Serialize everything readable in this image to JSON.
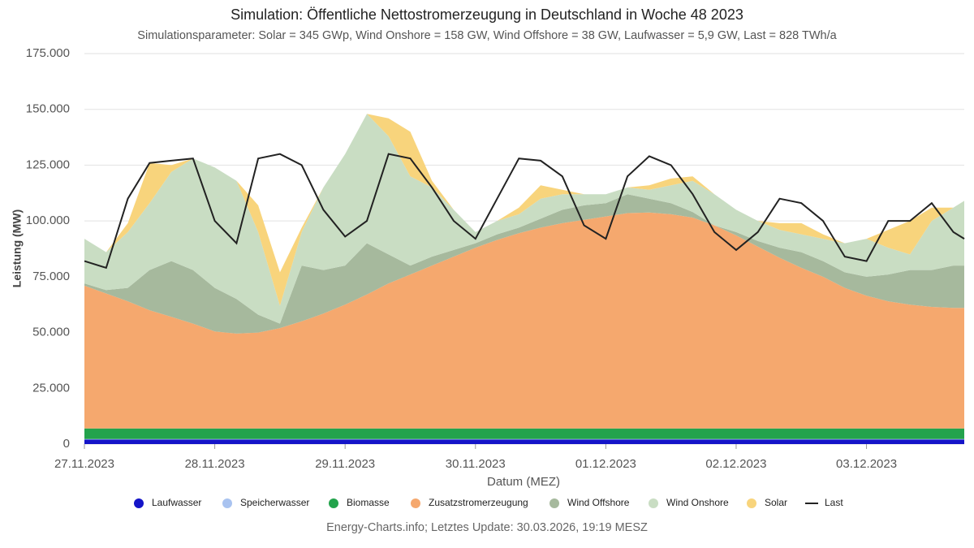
{
  "chart_data": {
    "type": "area",
    "title": "Simulation: Öffentliche Nettostromerzeugung in Deutschland in Woche 48 2023",
    "subtitle": "Simulationsparameter: Solar = 345 GWp, Wind Onshore = 158 GW, Wind Offshore = 38 GW, Laufwasser = 5,9 GW, Last = 828 TWh/a",
    "xlabel": "Datum (MEZ)",
    "ylabel": "Leistung (MW)",
    "credit": "Energy-Charts.info; Letztes Update: 30.03.2026, 19:19 MESZ",
    "stacked": true,
    "grid": true,
    "legend": "bottom",
    "x": [
      0,
      4,
      8,
      12,
      16,
      20,
      24,
      28,
      32,
      36,
      40,
      44,
      48,
      52,
      56,
      60,
      64,
      68,
      72,
      76,
      80,
      84,
      88,
      92,
      96,
      100,
      104,
      108,
      112,
      116,
      120,
      124,
      128,
      132,
      136,
      140,
      144,
      148,
      152,
      156,
      160,
      162
    ],
    "xlim": [
      0,
      162
    ],
    "xticks": [
      {
        "value": 0,
        "label": "27.11.2023"
      },
      {
        "value": 24,
        "label": "28.11.2023"
      },
      {
        "value": 48,
        "label": "29.11.2023"
      },
      {
        "value": 72,
        "label": "30.11.2023"
      },
      {
        "value": 96,
        "label": "01.12.2023"
      },
      {
        "value": 120,
        "label": "02.12.2023"
      },
      {
        "value": 144,
        "label": "03.12.2023"
      }
    ],
    "ylim": [
      0,
      175000
    ],
    "yticks": [
      0,
      {
        "value": 25000,
        "label": "25.000"
      },
      {
        "value": 50000,
        "label": "50.000"
      },
      {
        "value": 75000,
        "label": "75.000"
      },
      {
        "value": 100000,
        "label": "100.000"
      },
      {
        "value": 125000,
        "label": "125.000"
      },
      {
        "value": 150000,
        "label": "150.000"
      },
      {
        "value": 175000,
        "label": "175.000"
      }
    ],
    "series": [
      {
        "name": "Laufwasser",
        "type": "area",
        "color": "#1414c8",
        "values": [
          2000,
          2000,
          2000,
          2000,
          2000,
          2000,
          2000,
          2000,
          2000,
          2000,
          2000,
          2000,
          2000,
          2000,
          2000,
          2000,
          2000,
          2000,
          2000,
          2000,
          2000,
          2000,
          2000,
          2000,
          2000,
          2000,
          2000,
          2000,
          2000,
          2000,
          2000,
          2000,
          2000,
          2000,
          2000,
          2000,
          2000,
          2000,
          2000,
          2000,
          2000,
          2000
        ]
      },
      {
        "name": "Speicherwasser",
        "type": "area",
        "color": "#a9c3f0",
        "values": [
          300,
          300,
          300,
          300,
          300,
          300,
          300,
          300,
          300,
          300,
          300,
          300,
          300,
          300,
          300,
          300,
          300,
          300,
          300,
          300,
          300,
          300,
          300,
          300,
          300,
          300,
          300,
          300,
          300,
          300,
          300,
          300,
          300,
          300,
          300,
          300,
          300,
          300,
          300,
          300,
          300,
          300
        ]
      },
      {
        "name": "Biomasse",
        "type": "area",
        "color": "#23a34c",
        "values": [
          4700,
          4700,
          4700,
          4700,
          4700,
          4700,
          4700,
          4700,
          4700,
          4700,
          4700,
          4700,
          4700,
          4700,
          4700,
          4700,
          4700,
          4700,
          4700,
          4700,
          4700,
          4700,
          4700,
          4700,
          4700,
          4700,
          4700,
          4700,
          4700,
          4700,
          4700,
          4700,
          4700,
          4700,
          4700,
          4700,
          4700,
          4700,
          4700,
          4700,
          4700,
          4700
        ]
      },
      {
        "name": "Zusatzstromerzeugung",
        "type": "area",
        "color": "#f5a86e",
        "values": [
          64000,
          60500,
          57000,
          53000,
          50000,
          47000,
          43500,
          42500,
          43000,
          45000,
          48000,
          51500,
          55500,
          60000,
          65000,
          69000,
          73000,
          77000,
          81000,
          84500,
          87500,
          90000,
          92000,
          93500,
          95000,
          96500,
          96800,
          96000,
          94500,
          91000,
          86500,
          81500,
          76500,
          72000,
          68000,
          63000,
          59500,
          57000,
          55500,
          54500,
          54000,
          54000
        ]
      },
      {
        "name": "Wind Offshore",
        "type": "area",
        "color": "#a6b99d",
        "values": [
          1000,
          1500,
          6000,
          18000,
          25000,
          24000,
          19500,
          15500,
          8000,
          2000,
          25000,
          19500,
          17500,
          23000,
          13000,
          4000,
          4000,
          3000,
          2000,
          2500,
          2500,
          4000,
          6000,
          6500,
          6000,
          8500,
          6200,
          5000,
          2500,
          0,
          1500,
          2500,
          4500,
          7000,
          7000,
          7000,
          8500,
          12000,
          15500,
          16500,
          19000,
          19000
        ]
      },
      {
        "name": "Wind Onshore",
        "type": "area",
        "color": "#c9ddc3",
        "values": [
          20000,
          17000,
          25000,
          30000,
          40000,
          50000,
          54000,
          53000,
          37000,
          8000,
          15000,
          37000,
          50000,
          58000,
          53000,
          40000,
          31000,
          18000,
          5000,
          6000,
          6000,
          9000,
          7000,
          5000,
          4000,
          3000,
          4000,
          8000,
          14000,
          14000,
          10000,
          9000,
          8000,
          8000,
          10000,
          13000,
          17000,
          12000,
          7000,
          22000,
          26000,
          29000
        ]
      },
      {
        "name": "Solar",
        "type": "area",
        "color": "#f8d47c",
        "values": [
          0,
          0,
          4000,
          18000,
          3000,
          0,
          0,
          0,
          12000,
          15000,
          2000,
          0,
          0,
          0,
          8000,
          20000,
          3000,
          0,
          0,
          0,
          3000,
          6000,
          2000,
          0,
          0,
          0,
          2000,
          3000,
          2000,
          0,
          0,
          0,
          3000,
          5000,
          2000,
          0,
          0,
          8000,
          15000,
          6000,
          0,
          0
        ]
      },
      {
        "name": "Last",
        "type": "line",
        "color": "#222222",
        "values": [
          82000,
          79000,
          110000,
          126000,
          127000,
          128000,
          100000,
          90000,
          128000,
          130000,
          125000,
          105000,
          93000,
          100000,
          130000,
          128000,
          115000,
          100000,
          92000,
          110000,
          128000,
          127000,
          120000,
          98000,
          92000,
          120000,
          129000,
          125000,
          112000,
          95000,
          87000,
          95000,
          110000,
          108000,
          100000,
          84000,
          82000,
          100000,
          100000,
          108000,
          95000,
          92000
        ]
      }
    ]
  }
}
